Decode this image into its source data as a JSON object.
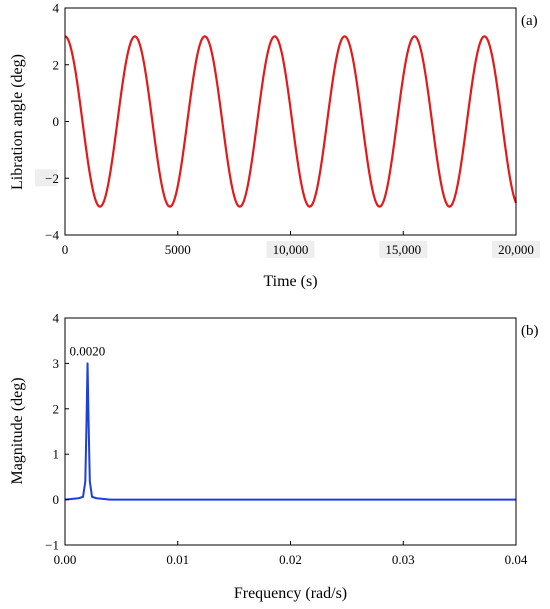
{
  "colors": {
    "series_a": "#e31a1c",
    "series_b": "#1f3fd6",
    "peak_label": "#e31a1c",
    "tick_bg": "#eeeeee",
    "axis": "#000000"
  },
  "chart_data": [
    {
      "type": "line",
      "panel_label": "(a)",
      "title": "",
      "xlabel": "Time (s)",
      "ylabel": "Libration angle (deg)",
      "xlim": [
        0,
        20000
      ],
      "ylim": [
        -4,
        4
      ],
      "x_ticks": [
        {
          "value": 0,
          "label": "0"
        },
        {
          "value": 5000,
          "label": "5000"
        },
        {
          "value": 10000,
          "label": "10,000"
        },
        {
          "value": 15000,
          "label": "15,000"
        },
        {
          "value": 20000,
          "label": "20,000"
        }
      ],
      "y_ticks": [
        {
          "value": 4,
          "label": "4"
        },
        {
          "value": 2,
          "label": "2"
        },
        {
          "value": 0,
          "label": "0"
        },
        {
          "value": -2,
          "label": "−2"
        },
        {
          "value": -4,
          "label": "−4"
        }
      ],
      "grid": false,
      "series": [
        {
          "amplitude_deg": 3,
          "period_s": 3100,
          "phase": "cosine",
          "x_range": [
            0,
            20000
          ]
        }
      ]
    },
    {
      "type": "line",
      "panel_label": "(b)",
      "title": "",
      "xlabel": "Frequency (rad/s)",
      "ylabel": "Magnitude (deg)",
      "xlim": [
        0,
        0.04
      ],
      "ylim": [
        -1,
        4
      ],
      "x_ticks": [
        {
          "value": 0,
          "label": "0.00"
        },
        {
          "value": 0.01,
          "label": "0.01"
        },
        {
          "value": 0.02,
          "label": "0.02"
        },
        {
          "value": 0.03,
          "label": "0.03"
        },
        {
          "value": 0.04,
          "label": "0.04"
        }
      ],
      "y_ticks": [
        {
          "value": 4,
          "label": "4"
        },
        {
          "value": 3,
          "label": "3"
        },
        {
          "value": 2,
          "label": "2"
        },
        {
          "value": 1,
          "label": "1"
        },
        {
          "value": 0,
          "label": "0"
        },
        {
          "value": -1,
          "label": "−1"
        }
      ],
      "grid": false,
      "annotations": [
        {
          "text": "0.0020",
          "x": 0.002,
          "y": 3.0
        }
      ],
      "series": [
        {
          "x": [
            0,
            0.0012,
            0.0016,
            0.0018,
            0.0019,
            0.002,
            0.0021,
            0.0022,
            0.0024,
            0.0028,
            0.004,
            0.01,
            0.02,
            0.03,
            0.04
          ],
          "y": [
            0,
            0.03,
            0.06,
            0.4,
            1.6,
            3.0,
            1.6,
            0.4,
            0.06,
            0.03,
            0,
            0,
            0,
            0,
            0
          ]
        }
      ]
    }
  ]
}
